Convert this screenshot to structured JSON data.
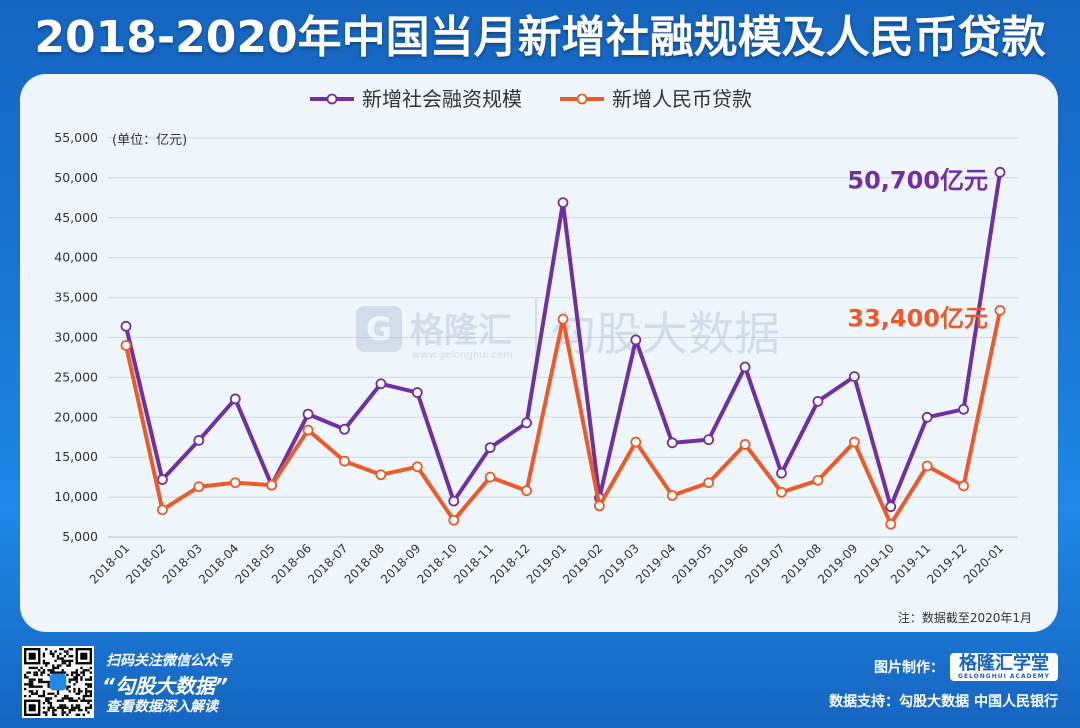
{
  "header": {
    "title": "2018-2020年中国当月新增社融规模及人民币贷款"
  },
  "chart_data": {
    "type": "line",
    "title": "2018-2020年中国当月新增社融规模及人民币贷款",
    "unit_label": "(单位：亿元)",
    "categories": [
      "2018-01",
      "2018-02",
      "2018-03",
      "2018-04",
      "2018-05",
      "2018-06",
      "2018-07",
      "2018-08",
      "2018-09",
      "2018-10",
      "2018-11",
      "2018-12",
      "2019-01",
      "2019-02",
      "2019-03",
      "2019-04",
      "2019-05",
      "2019-06",
      "2019-07",
      "2019-08",
      "2019-09",
      "2019-10",
      "2019-11",
      "2019-12",
      "2020-01"
    ],
    "series": [
      {
        "name": "新增社会融资规模",
        "color": "#7030a0",
        "values": [
          31400,
          12200,
          17100,
          22300,
          11500,
          20400,
          18500,
          24200,
          23100,
          9500,
          16200,
          19300,
          46900,
          9900,
          29700,
          16800,
          17200,
          26300,
          13000,
          22000,
          25100,
          8800,
          20000,
          21000,
          50700
        ]
      },
      {
        "name": "新增人民币贷款",
        "color": "#ed5a2a",
        "values": [
          29000,
          8400,
          11300,
          11800,
          11500,
          18400,
          14500,
          12800,
          13800,
          7100,
          12500,
          10800,
          32300,
          8900,
          16900,
          10200,
          11800,
          16600,
          10600,
          12100,
          16900,
          6600,
          13900,
          11400,
          33400
        ]
      }
    ],
    "ylim": [
      5000,
      55000
    ],
    "yticks": [
      "5,000",
      "10,000",
      "15,000",
      "20,000",
      "25,000",
      "30,000",
      "35,000",
      "40,000",
      "45,000",
      "50,000",
      "55,000"
    ],
    "ytick_values": [
      5000,
      10000,
      15000,
      20000,
      25000,
      30000,
      35000,
      40000,
      45000,
      50000,
      55000
    ],
    "annotations": [
      {
        "text": "50,700亿元",
        "series": 0,
        "color": "#7030a0"
      },
      {
        "text": "33,400亿元",
        "series": 1,
        "color": "#ed5a2a"
      }
    ],
    "note": "注：数据截至2020年1月",
    "grid": true,
    "legend": "top-center"
  },
  "watermark": {
    "brand": "格隆汇",
    "site": "www.gelonghui.com",
    "slogan": "勾股大数据"
  },
  "footer": {
    "scan_text": "扫码关注微信公众号",
    "brand_text": "“勾股大数据”",
    "view_text": "查看数据深入解读",
    "made_by_label": "图片制作：",
    "logo_text": "格隆汇学堂",
    "logo_sub": "GELONGHUI ACADEMY",
    "source_label": "数据支持：",
    "sources": "勾股大数据 中国人民银行"
  }
}
